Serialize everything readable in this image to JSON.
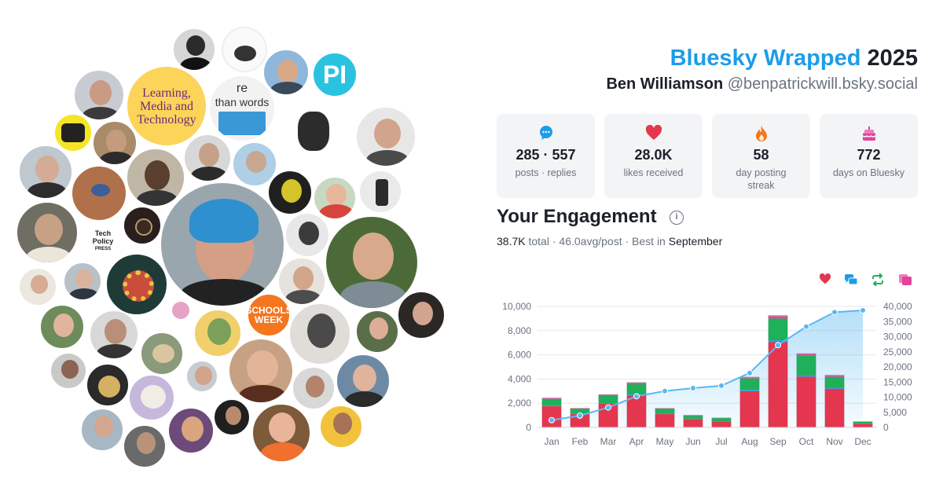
{
  "header": {
    "brand": "Bluesky Wrapped",
    "year": "2025",
    "name": "Ben Williamson",
    "handle": "@benpatrickwill.bsky.social"
  },
  "stats": [
    {
      "icon": "chat-bubble-icon",
      "value": "285 · 557",
      "label": "posts · replies",
      "color": "#1c9de8"
    },
    {
      "icon": "heart-icon",
      "value": "28.0K",
      "label": "likes received",
      "color": "#e5364f"
    },
    {
      "icon": "flame-icon",
      "value": "58",
      "label": "day posting streak",
      "color": "#f4761e"
    },
    {
      "icon": "cake-icon",
      "value": "772",
      "label": "days on Bluesky",
      "color": "#e0459a"
    }
  ],
  "engagement": {
    "title": "Your Engagement",
    "total_value": "38.7K",
    "total_label": "total",
    "avg_value": "46.0",
    "avg_label": "avg/post",
    "best_label": "Best in",
    "best_month": "September",
    "legend_icons": [
      {
        "name": "heart-icon",
        "color": "#e5364f"
      },
      {
        "name": "reply-icon",
        "color": "#1c9de8"
      },
      {
        "name": "repost-icon",
        "color": "#1fb05a"
      },
      {
        "name": "quote-icon",
        "color": "#e0459a"
      }
    ]
  },
  "avatars": {
    "logo_lmt": "Learning, Media and Technology",
    "logo_pi": "PI",
    "logo_sw_1": "SCHOOLS",
    "logo_sw_2": "WEEK",
    "logo_tp_1": "Tech",
    "logo_tp_2": "Policy",
    "logo_tp_3": "PRESS",
    "logo_mw_1": "re",
    "logo_mw_2": "than words"
  },
  "chart_data": {
    "type": "bar",
    "categories": [
      "Jan",
      "Feb",
      "Mar",
      "Apr",
      "May",
      "Jun",
      "Jul",
      "Aug",
      "Sep",
      "Oct",
      "Nov",
      "Dec"
    ],
    "series": [
      {
        "color": "#e5364f",
        "values": [
          1750,
          1100,
          1950,
          2650,
          1100,
          700,
          500,
          3000,
          7050,
          4200,
          3200,
          300
        ]
      },
      {
        "color": "#1c9de8",
        "values": [
          50,
          30,
          60,
          70,
          30,
          20,
          20,
          100,
          150,
          120,
          80,
          10
        ]
      },
      {
        "color": "#1fb05a",
        "values": [
          550,
          400,
          620,
          850,
          400,
          250,
          250,
          950,
          1800,
          1600,
          900,
          150
        ]
      },
      {
        "color": "#e0459a",
        "values": [
          50,
          40,
          60,
          100,
          30,
          30,
          20,
          80,
          200,
          150,
          100,
          20
        ]
      },
      {
        "color": "#9aa1a9",
        "values": [
          50,
          30,
          40,
          50,
          30,
          20,
          10,
          40,
          60,
          40,
          50,
          10
        ]
      }
    ],
    "cumulative": {
      "color": "#5ab8f0",
      "values": [
        2400,
        3900,
        6600,
        10300,
        12000,
        13000,
        13800,
        18000,
        27200,
        33300,
        38100,
        38700
      ]
    },
    "ylim_left": [
      0,
      10000
    ],
    "yticks_left": [
      "0",
      "2,000",
      "4,000",
      "6,000",
      "8,000",
      "10,000"
    ],
    "ylim_right": [
      0,
      40000
    ],
    "yticks_right": [
      "0",
      "5,000",
      "10,000",
      "15,000",
      "20,000",
      "25,000",
      "30,000",
      "35,000",
      "40,000"
    ],
    "grid": true
  }
}
